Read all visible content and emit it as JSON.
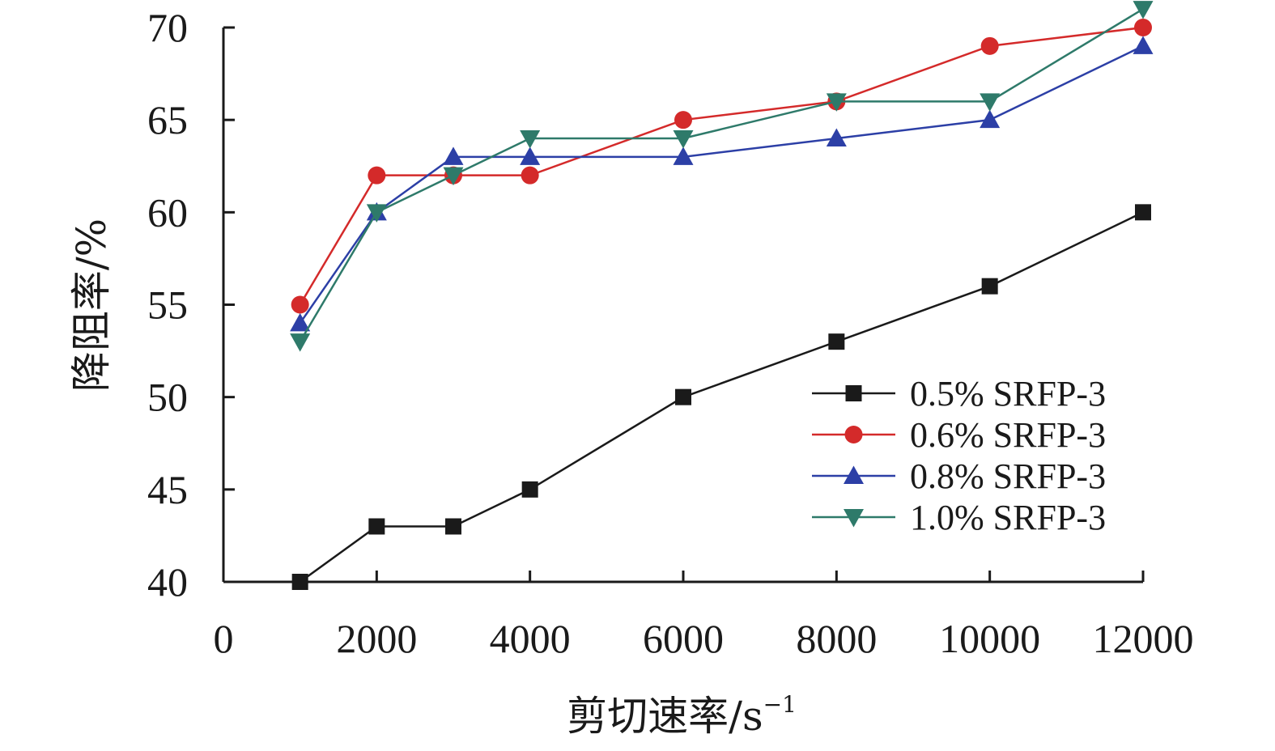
{
  "chart_data": {
    "type": "line",
    "xlabel": "剪切速率/s",
    "xlabel_superscript": "−1",
    "ylabel": "降阻率/%",
    "xlim": [
      0,
      12000
    ],
    "ylim": [
      40,
      70
    ],
    "xticks": [
      0,
      2000,
      4000,
      6000,
      8000,
      10000,
      12000
    ],
    "yticks": [
      40,
      45,
      50,
      55,
      60,
      65,
      70
    ],
    "grid": false,
    "legend_position": "lower-right",
    "x": [
      1000,
      2000,
      3000,
      4000,
      6000,
      8000,
      10000,
      12000
    ],
    "series": [
      {
        "name": "0.5% SRFP-3",
        "marker": "square",
        "color": "#1a1a1a",
        "values": [
          40,
          43,
          43,
          45,
          50,
          53,
          56,
          60
        ]
      },
      {
        "name": "0.6% SRFP-3",
        "marker": "circle",
        "color": "#d42a2a",
        "values": [
          55,
          62,
          62,
          62,
          65,
          66,
          69,
          70
        ]
      },
      {
        "name": "0.8% SRFP-3",
        "marker": "triangle-up",
        "color": "#2c3fa6",
        "values": [
          54,
          60,
          63,
          63,
          63,
          64,
          65,
          69
        ]
      },
      {
        "name": "1.0% SRFP-3",
        "marker": "triangle-down",
        "color": "#2e7a6a",
        "values": [
          53,
          60,
          62,
          64,
          64,
          66,
          66,
          71
        ]
      }
    ]
  }
}
